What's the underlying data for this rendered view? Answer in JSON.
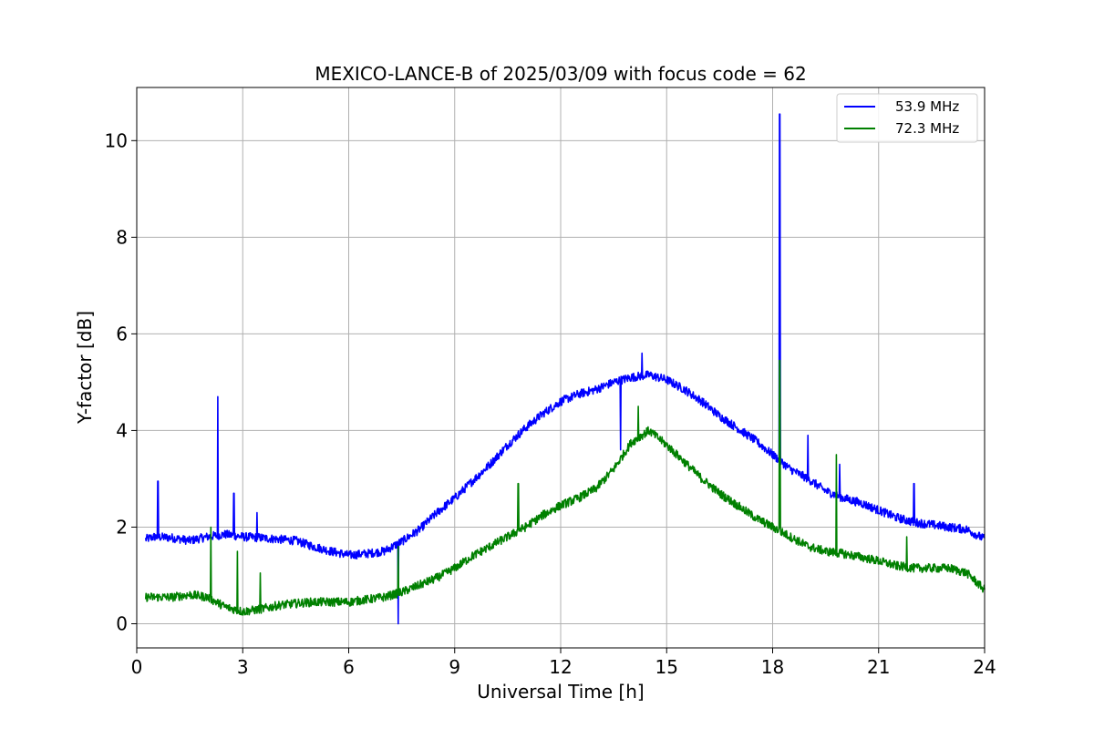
{
  "chart_data": {
    "type": "line",
    "title": "MEXICO-LANCE-B of 2025/03/09 with focus code = 62",
    "xlabel": "Universal Time [h]",
    "ylabel": "Y-factor [dB]",
    "xlim": [
      0,
      24
    ],
    "ylim": [
      -0.5,
      11.1
    ],
    "xticks": [
      0,
      3,
      6,
      9,
      12,
      15,
      18,
      21,
      24
    ],
    "yticks": [
      0,
      2,
      4,
      6,
      8,
      10
    ],
    "grid": true,
    "legend_position": "top-right",
    "series": [
      {
        "name": "53.9 MHz",
        "color": "#0000ff",
        "x": [
          0.25,
          0.5,
          1.0,
          1.5,
          2.0,
          2.5,
          3.0,
          3.5,
          4.0,
          4.5,
          5.0,
          5.5,
          6.0,
          6.5,
          7.0,
          7.5,
          8.0,
          8.5,
          9.0,
          9.5,
          10.0,
          10.5,
          11.0,
          11.5,
          12.0,
          12.5,
          13.0,
          13.5,
          14.0,
          14.5,
          15.0,
          15.5,
          16.0,
          16.5,
          17.0,
          17.5,
          18.0,
          18.5,
          19.0,
          19.5,
          20.0,
          20.5,
          21.0,
          21.5,
          22.0,
          22.5,
          23.0,
          23.5,
          24.0
        ],
        "y": [
          1.75,
          1.8,
          1.78,
          1.72,
          1.8,
          1.85,
          1.8,
          1.78,
          1.75,
          1.72,
          1.6,
          1.5,
          1.42,
          1.45,
          1.5,
          1.7,
          1.95,
          2.3,
          2.6,
          2.95,
          3.3,
          3.7,
          4.05,
          4.35,
          4.6,
          4.75,
          4.85,
          5.0,
          5.1,
          5.15,
          5.05,
          4.85,
          4.6,
          4.3,
          4.05,
          3.8,
          3.5,
          3.2,
          3.0,
          2.75,
          2.6,
          2.5,
          2.35,
          2.2,
          2.1,
          2.05,
          2.0,
          1.95,
          1.75
        ]
      },
      {
        "name": "72.3 MHz",
        "color": "#008000",
        "x": [
          0.25,
          0.5,
          1.0,
          1.5,
          2.0,
          2.5,
          3.0,
          3.5,
          4.0,
          4.5,
          5.0,
          5.5,
          6.0,
          6.5,
          7.0,
          7.5,
          8.0,
          8.5,
          9.0,
          9.5,
          10.0,
          10.5,
          11.0,
          11.5,
          12.0,
          12.5,
          13.0,
          13.5,
          14.0,
          14.5,
          15.0,
          15.5,
          16.0,
          16.5,
          17.0,
          17.5,
          18.0,
          18.5,
          19.0,
          19.5,
          20.0,
          20.5,
          21.0,
          21.5,
          22.0,
          22.5,
          23.0,
          23.5,
          24.0
        ],
        "y": [
          0.55,
          0.55,
          0.55,
          0.6,
          0.55,
          0.35,
          0.25,
          0.3,
          0.38,
          0.42,
          0.45,
          0.45,
          0.45,
          0.5,
          0.55,
          0.65,
          0.8,
          0.95,
          1.15,
          1.4,
          1.6,
          1.8,
          2.0,
          2.25,
          2.45,
          2.6,
          2.8,
          3.2,
          3.75,
          4.0,
          3.7,
          3.35,
          3.0,
          2.7,
          2.45,
          2.2,
          2.0,
          1.8,
          1.6,
          1.5,
          1.45,
          1.38,
          1.3,
          1.2,
          1.15,
          1.15,
          1.15,
          1.05,
          0.7
        ]
      }
    ],
    "spikes": [
      {
        "series": 0,
        "x": 0.6,
        "y": 2.95
      },
      {
        "series": 0,
        "x": 2.3,
        "y": 4.7
      },
      {
        "series": 0,
        "x": 2.75,
        "y": 2.7
      },
      {
        "series": 0,
        "x": 3.4,
        "y": 2.3
      },
      {
        "series": 0,
        "x": 7.4,
        "y": 2.2
      },
      {
        "series": 0,
        "x": 7.4,
        "y": 0.0
      },
      {
        "series": 0,
        "x": 13.7,
        "y": 3.6
      },
      {
        "series": 0,
        "x": 14.3,
        "y": 5.6
      },
      {
        "series": 0,
        "x": 18.2,
        "y": 10.55
      },
      {
        "series": 0,
        "x": 19.0,
        "y": 3.9
      },
      {
        "series": 0,
        "x": 19.9,
        "y": 3.3
      },
      {
        "series": 0,
        "x": 22.0,
        "y": 2.9
      },
      {
        "series": 1,
        "x": 2.1,
        "y": 2.0
      },
      {
        "series": 1,
        "x": 2.85,
        "y": 1.5
      },
      {
        "series": 1,
        "x": 3.5,
        "y": 1.05
      },
      {
        "series": 1,
        "x": 7.4,
        "y": 1.6
      },
      {
        "series": 1,
        "x": 10.8,
        "y": 2.9
      },
      {
        "series": 1,
        "x": 14.2,
        "y": 4.5
      },
      {
        "series": 1,
        "x": 18.2,
        "y": 5.45
      },
      {
        "series": 1,
        "x": 19.8,
        "y": 3.5
      },
      {
        "series": 1,
        "x": 21.8,
        "y": 1.8
      }
    ]
  }
}
